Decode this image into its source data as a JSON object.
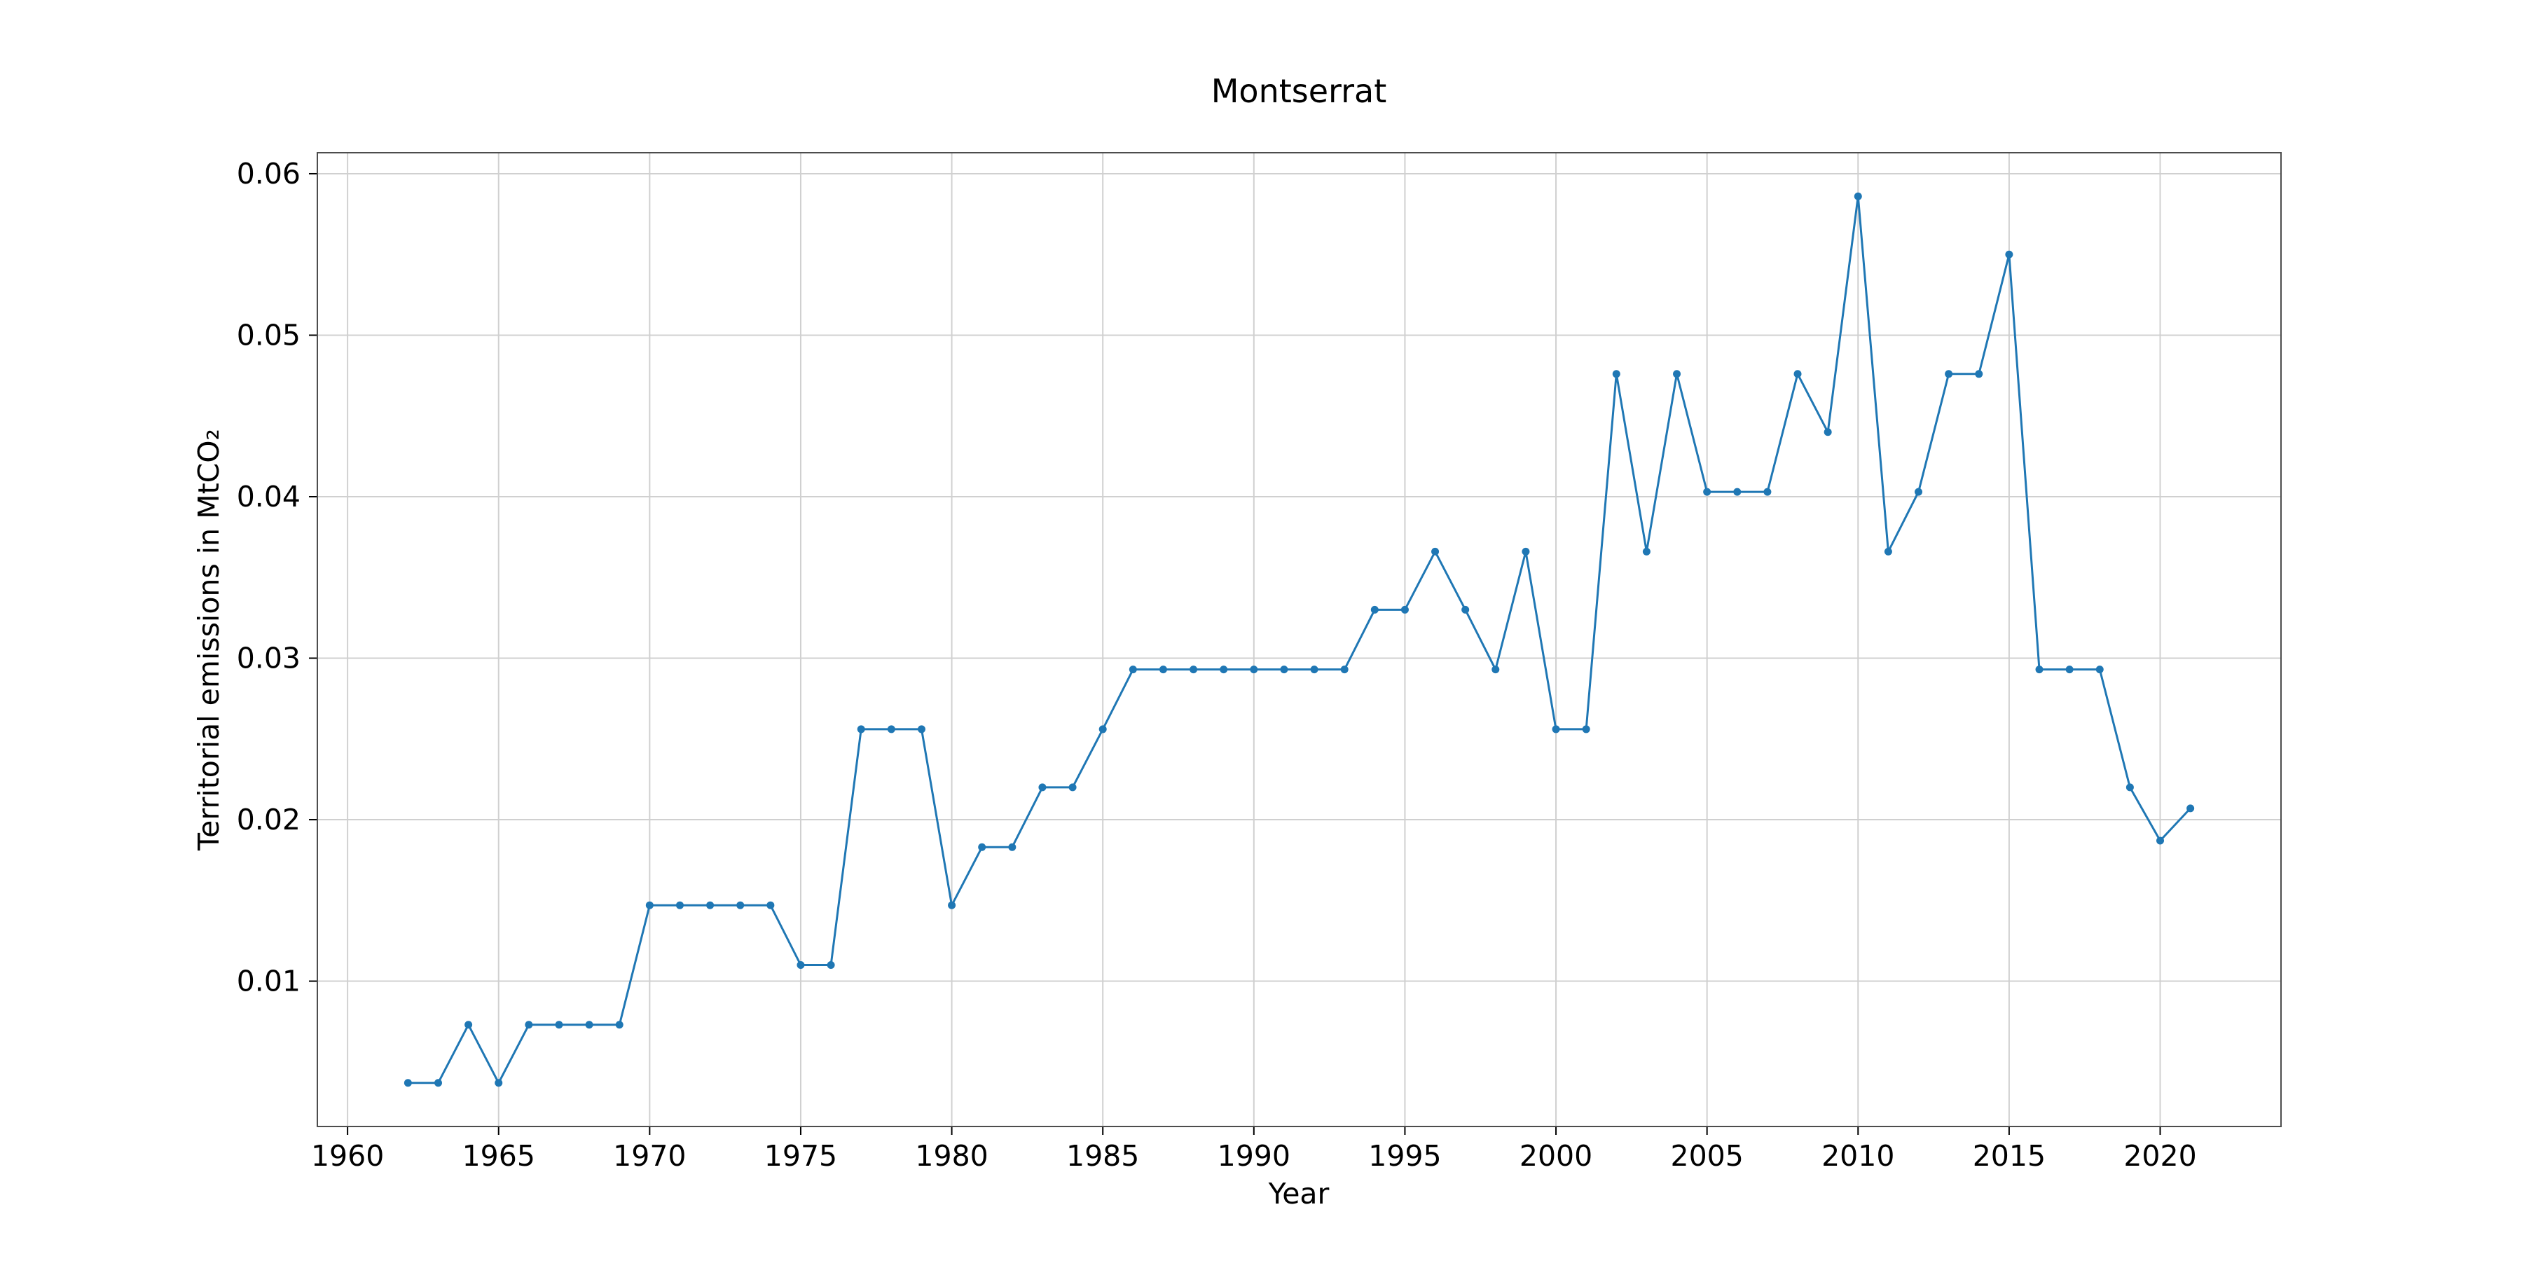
{
  "chart_data": {
    "type": "line",
    "title": "Montserrat",
    "xlabel": "Year",
    "ylabel": "Territorial emissions in MtCO₂",
    "xlim": [
      1959,
      2024
    ],
    "ylim": [
      0.001,
      0.0613
    ],
    "xticks": [
      1960,
      1965,
      1970,
      1975,
      1980,
      1985,
      1990,
      1995,
      2000,
      2005,
      2010,
      2015,
      2020
    ],
    "yticks": [
      0.01,
      0.02,
      0.03,
      0.04,
      0.05,
      0.06
    ],
    "ytick_labels": [
      "0.01",
      "0.02",
      "0.03",
      "0.04",
      "0.05",
      "0.06"
    ],
    "grid": true,
    "color": "#1f77b4",
    "series": [
      {
        "x": [
          1962,
          1963,
          1964,
          1965,
          1966,
          1967,
          1968,
          1969,
          1970,
          1971,
          1972,
          1973,
          1974,
          1975,
          1976,
          1977,
          1978,
          1979,
          1980,
          1981,
          1982,
          1983,
          1984,
          1985,
          1986,
          1987,
          1988,
          1989,
          1990,
          1991,
          1992,
          1993,
          1994,
          1995,
          1996,
          1997,
          1998,
          1999,
          2000,
          2001,
          2002,
          2003,
          2004,
          2005,
          2006,
          2007,
          2008,
          2009,
          2010,
          2011,
          2012,
          2013,
          2014,
          2015,
          2016,
          2017,
          2018,
          2019,
          2020,
          2021
        ],
        "y": [
          0.0037,
          0.0037,
          0.0073,
          0.0037,
          0.0073,
          0.0073,
          0.0073,
          0.0073,
          0.0147,
          0.0147,
          0.0147,
          0.0147,
          0.0147,
          0.011,
          0.011,
          0.0256,
          0.0256,
          0.0256,
          0.0147,
          0.0183,
          0.0183,
          0.022,
          0.022,
          0.0256,
          0.0293,
          0.0293,
          0.0293,
          0.0293,
          0.0293,
          0.0293,
          0.0293,
          0.0293,
          0.033,
          0.033,
          0.0366,
          0.033,
          0.0293,
          0.0366,
          0.0256,
          0.0256,
          0.0476,
          0.0366,
          0.0476,
          0.0403,
          0.0403,
          0.0403,
          0.0476,
          0.044,
          0.0586,
          0.0366,
          0.0403,
          0.0476,
          0.0476,
          0.055,
          0.0293,
          0.0293,
          0.0293,
          0.022,
          0.0187,
          0.0207
        ]
      }
    ]
  }
}
